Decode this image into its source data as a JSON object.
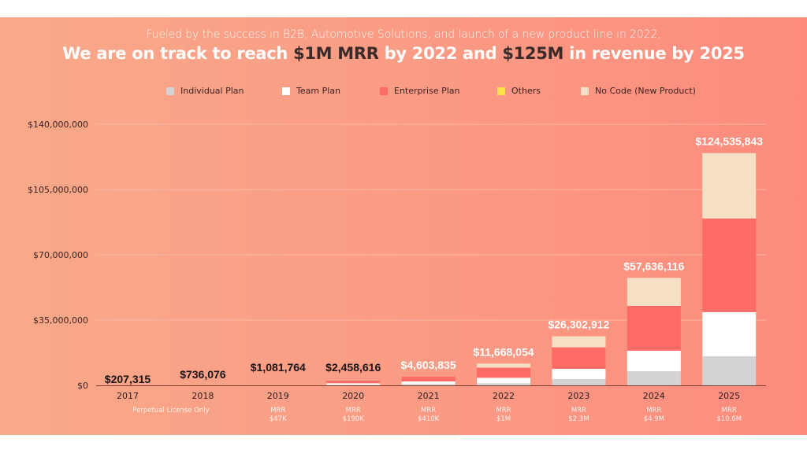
{
  "header": {
    "subtitle": "Fueled by the success in B2B, Automotive Solutions, and launch of a new product line in 2022,",
    "title_parts": [
      {
        "text": "We are on track to reach ",
        "highlight": false
      },
      {
        "text": "$1M MRR",
        "highlight": true
      },
      {
        "text": " by 2022 and ",
        "highlight": false
      },
      {
        "text": "$125M",
        "highlight": true
      },
      {
        "text": " in revenue by 2025",
        "highlight": false
      }
    ]
  },
  "colors": {
    "individual": "#d3d3d3",
    "team": "#ffffff",
    "enterprise": "#ff6b66",
    "others": "#ffe14a",
    "nocode": "#f5dfc5",
    "axis": "#7a3a30",
    "grid": "#fbb7a4"
  },
  "chart_data": {
    "type": "bar",
    "stacked": true,
    "title": "We are on track to reach $1M MRR by 2022 and $125M in revenue by 2025",
    "xlabel": "",
    "ylabel": "",
    "ylim": [
      0,
      140000000
    ],
    "yticks": [
      0,
      35000000,
      70000000,
      105000000,
      140000000
    ],
    "ytick_labels": [
      "$0",
      "$35,000,000",
      "$70,000,000",
      "$105,000,000",
      "$140,000,000"
    ],
    "grid": true,
    "legend_position": "top",
    "categories": [
      "2017",
      "2018",
      "2019",
      "2020",
      "2021",
      "2022",
      "2023",
      "2024",
      "2025"
    ],
    "series": [
      {
        "name": "Individual Plan",
        "key": "individual",
        "values": [
          0,
          0,
          0,
          350000,
          700000,
          1100000,
          3400000,
          7600000,
          15600000
        ]
      },
      {
        "name": "Team Plan",
        "key": "team",
        "values": [
          0,
          0,
          0,
          800000,
          1400000,
          3000000,
          5500000,
          11000000,
          23700000
        ]
      },
      {
        "name": "Enterprise Plan",
        "key": "enterprise",
        "values": [
          0,
          0,
          0,
          1300000,
          2500000,
          5400000,
          11500000,
          24000000,
          50200000
        ]
      },
      {
        "name": "Others",
        "key": "others",
        "values": [
          207315,
          736076,
          1081764,
          8616,
          3835,
          0,
          0,
          0,
          0
        ]
      },
      {
        "name": "No Code (New Product)",
        "key": "nocode",
        "values": [
          0,
          0,
          0,
          0,
          0,
          2168054,
          5902912,
          15036116,
          35035843
        ]
      }
    ],
    "totals": [
      207315,
      736076,
      1081764,
      2458616,
      4603835,
      11668054,
      26302912,
      57636116,
      124535843
    ],
    "total_labels": [
      "$207,315",
      "$736,076",
      "$1,081,764",
      "$2,458,616",
      "$4,603,835",
      "$11,668,054",
      "$26,302,912",
      "$57,636,116",
      "$124,535,843"
    ],
    "annotations": [
      {
        "category": "2017",
        "lines": [
          "Perpetual License Only"
        ]
      },
      {
        "category": "2019",
        "lines": [
          "MRR",
          "$47K"
        ]
      },
      {
        "category": "2020",
        "lines": [
          "MRR",
          "$190K"
        ]
      },
      {
        "category": "2021",
        "lines": [
          "MRR",
          "$410K"
        ]
      },
      {
        "category": "2022",
        "lines": [
          "MRR",
          "$1M"
        ]
      },
      {
        "category": "2023",
        "lines": [
          "MRR",
          "$2.3M"
        ]
      },
      {
        "category": "2024",
        "lines": [
          "MRR",
          "$4.9M"
        ]
      },
      {
        "category": "2025",
        "lines": [
          "MRR",
          "$10.6M"
        ]
      }
    ]
  }
}
